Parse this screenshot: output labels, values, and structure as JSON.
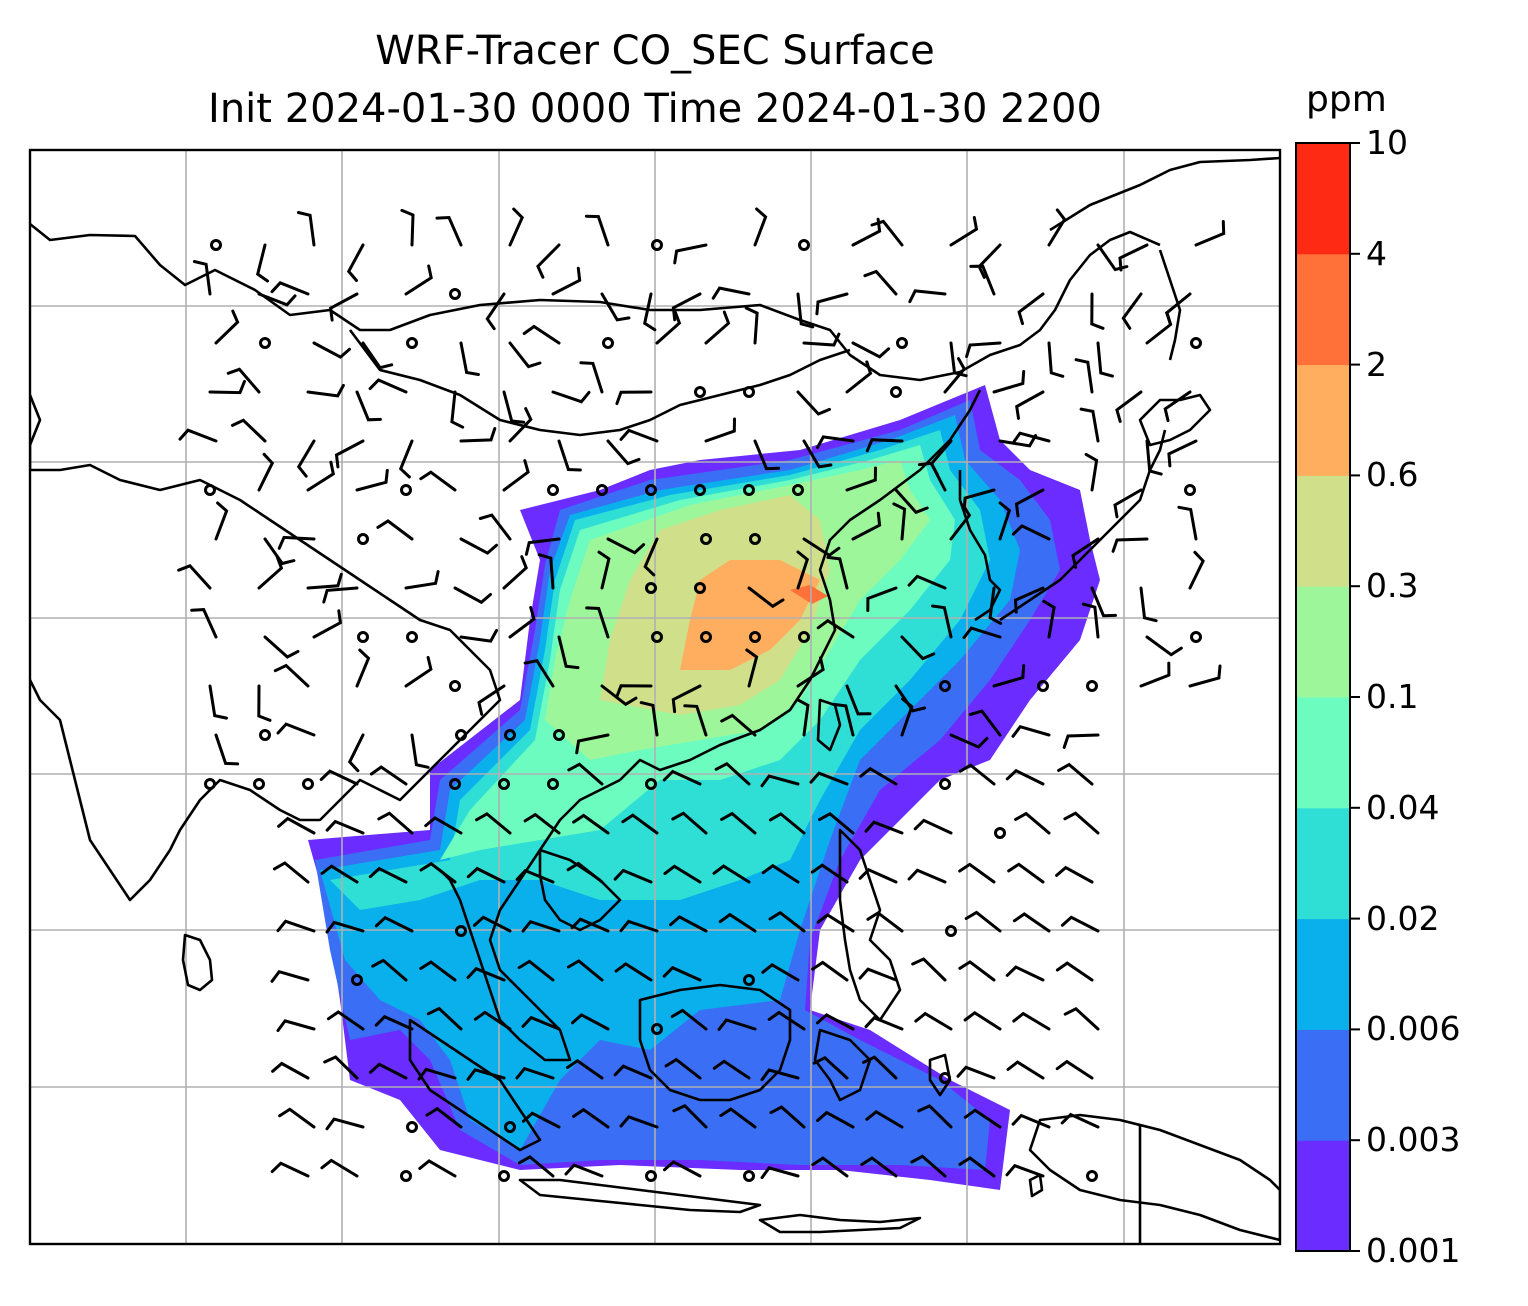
{
  "title_line1": "WRF-Tracer CO_SEC Surface",
  "title_line2": "Init 2024-01-30 0000 Time 2024-01-30 2200",
  "colorbar": {
    "unit": "ppm",
    "levels": [
      "0.001",
      "0.003",
      "0.006",
      "0.02",
      "0.04",
      "0.1",
      "0.3",
      "0.6",
      "2",
      "4",
      "10"
    ],
    "colors": [
      "#6a2cff",
      "#3a6ef5",
      "#0ab0ec",
      "#2fdfd6",
      "#6dfcc0",
      "#9df79a",
      "#d0e08a",
      "#ffad5f",
      "#ff7139",
      "#ff2a14"
    ]
  },
  "map": {
    "grid": true,
    "features": [
      "coastlines",
      "country-borders",
      "wind-barbs"
    ]
  }
}
